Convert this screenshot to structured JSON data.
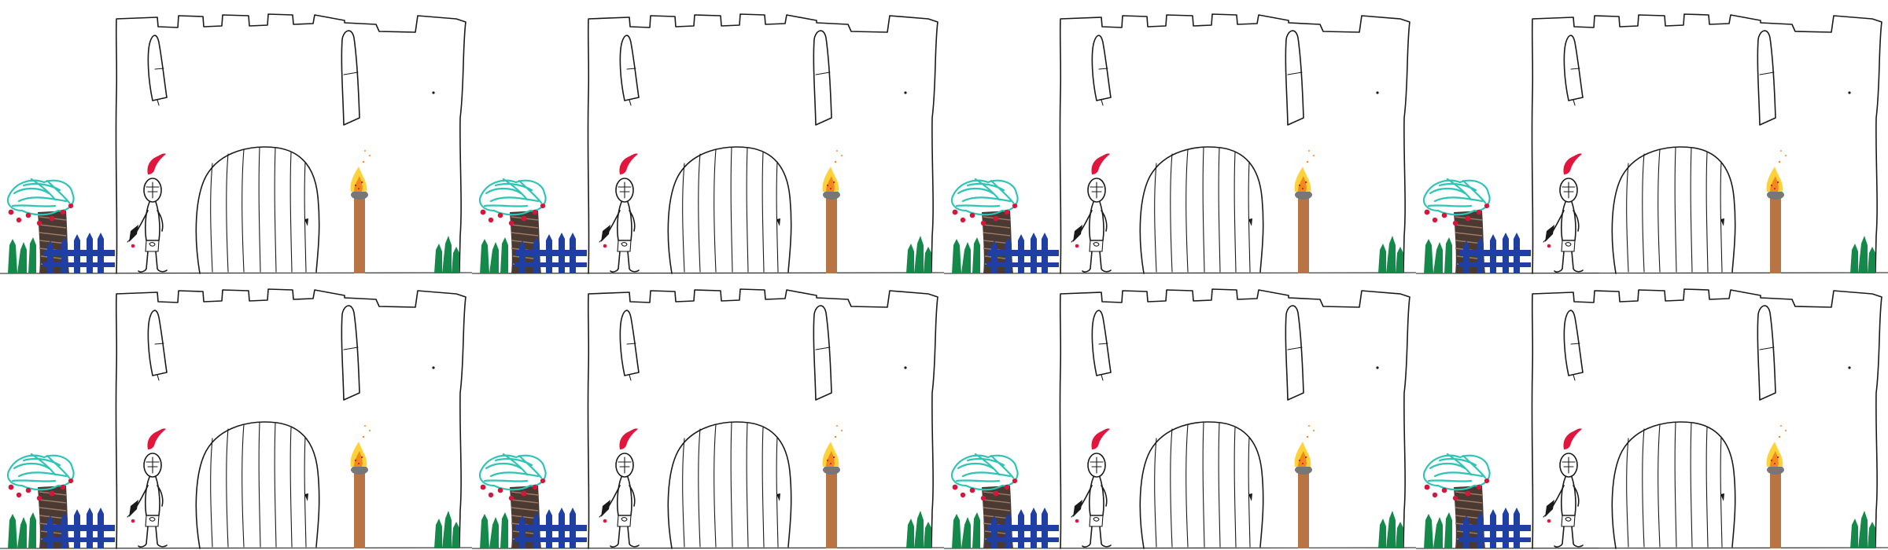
{
  "scene": {
    "layout": {
      "columns": 4,
      "rows": 2
    },
    "subject": "child-drawing-castle-knight",
    "colors": {
      "ink": "#1a1a1a",
      "background": "#ffffff",
      "plume": "#e0163c",
      "tree_leaves": "#2ec4b6",
      "tree_berries": "#d6173b",
      "tree_trunk": "#4a3a32",
      "fence": "#1f3fa3",
      "grass": "#138a4a",
      "torch_pole": "#b87444",
      "torch_cup": "#777777",
      "flame_outer": "#ffd23a",
      "flame_inner": "#f08a1c",
      "flame_sparks": "#e0163c"
    }
  }
}
